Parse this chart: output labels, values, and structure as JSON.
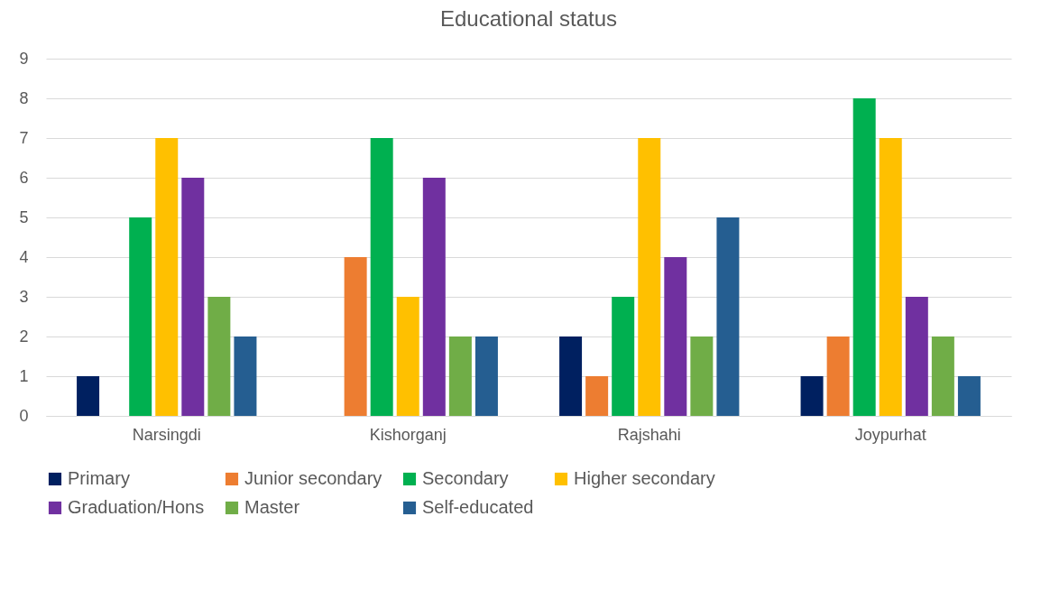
{
  "chart_data": {
    "type": "bar",
    "title": "Educational status",
    "categories": [
      "Narsingdi",
      "Kishorganj",
      "Rajshahi",
      "Joypurhat"
    ],
    "series": [
      {
        "name": "Primary",
        "color": "#002060",
        "values": [
          1,
          0,
          2,
          1
        ]
      },
      {
        "name": "Junior secondary",
        "color": "#ed7d31",
        "values": [
          0,
          4,
          1,
          2
        ]
      },
      {
        "name": "Secondary",
        "color": "#00b050",
        "values": [
          5,
          7,
          3,
          8
        ]
      },
      {
        "name": "Higher secondary",
        "color": "#ffc000",
        "values": [
          7,
          3,
          7,
          7
        ]
      },
      {
        "name": "Graduation/Hons",
        "color": "#7030a0",
        "values": [
          6,
          6,
          4,
          3
        ]
      },
      {
        "name": "Master",
        "color": "#70ad47",
        "values": [
          3,
          2,
          2,
          2
        ]
      },
      {
        "name": "Self-educated",
        "color": "#255e91",
        "values": [
          2,
          2,
          5,
          1
        ]
      }
    ],
    "ylim": [
      0,
      9
    ],
    "yticks": [
      0,
      1,
      2,
      3,
      4,
      5,
      6,
      7,
      8,
      9
    ],
    "grid": "y",
    "legend": "bottom"
  }
}
